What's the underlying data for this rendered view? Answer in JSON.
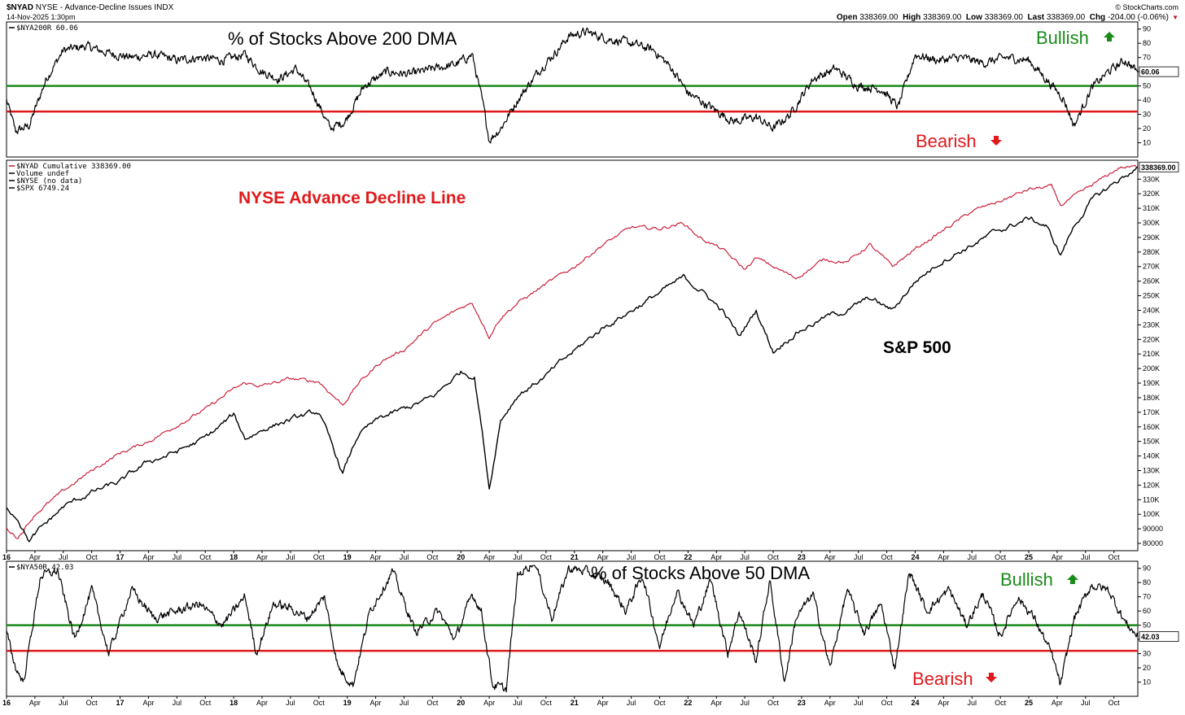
{
  "header": {
    "symbol": "$NYAD",
    "description": "NYSE - Advance-Decline Issues  INDX",
    "datetime": "14-Nov-2025 1:30pm",
    "brand": "© StockCharts.com",
    "open_label": "Open",
    "open": "338369.00",
    "high_label": "High",
    "high": "338369.00",
    "low_label": "Low",
    "low": "338369.00",
    "last_label": "Last",
    "last": "338369.00",
    "chg_label": "Chg",
    "chg": "-204.00 (-0.06%)"
  },
  "colors": {
    "adline": "#c8102e",
    "spx": "#000000",
    "bullish": "#1a8a1a",
    "bearish": "#e0191b",
    "frame": "#000000"
  },
  "chart_data": [
    {
      "type": "line",
      "title": "% of Stocks Above 200 DMA",
      "legend": [
        "$NYA200R 60.06"
      ],
      "ylim": [
        0,
        95
      ],
      "yticks": [
        10,
        20,
        30,
        40,
        50,
        60,
        70,
        80,
        90
      ],
      "last_value_label": "60.06",
      "reference_lines": [
        {
          "value": 50,
          "color": "green"
        },
        {
          "value": 32,
          "color": "red"
        }
      ],
      "annotations": {
        "bullish": "Bullish",
        "bearish": "Bearish"
      },
      "series": [
        {
          "name": "$NYA200R",
          "x": [
            2016.0,
            2016.08,
            2016.2,
            2016.35,
            2016.5,
            2016.7,
            2016.9,
            2017.1,
            2017.3,
            2017.5,
            2017.7,
            2017.9,
            2018.1,
            2018.25,
            2018.4,
            2018.55,
            2018.7,
            2018.85,
            2018.98,
            2019.15,
            2019.35,
            2019.55,
            2019.75,
            2019.95,
            2020.1,
            2020.2,
            2020.25,
            2020.35,
            2020.5,
            2020.7,
            2020.85,
            2020.95,
            2021.1,
            2021.3,
            2021.5,
            2021.7,
            2021.85,
            2022.0,
            2022.2,
            2022.4,
            2022.6,
            2022.75,
            2022.9,
            2023.1,
            2023.3,
            2023.5,
            2023.7,
            2023.85,
            2024.0,
            2024.2,
            2024.4,
            2024.6,
            2024.8,
            2025.0,
            2025.15,
            2025.3,
            2025.4,
            2025.55,
            2025.7,
            2025.85,
            2025.96
          ],
          "values": [
            40,
            18,
            22,
            55,
            75,
            78,
            73,
            70,
            72,
            68,
            70,
            68,
            72,
            60,
            55,
            62,
            45,
            20,
            25,
            50,
            60,
            58,
            62,
            65,
            72,
            35,
            12,
            20,
            40,
            62,
            75,
            85,
            88,
            83,
            80,
            75,
            63,
            45,
            35,
            25,
            28,
            20,
            30,
            55,
            62,
            50,
            48,
            35,
            72,
            68,
            70,
            66,
            70,
            68,
            55,
            42,
            22,
            48,
            60,
            68,
            60
          ]
        }
      ]
    },
    {
      "type": "line",
      "title": "NYSE Advance Decline Line",
      "legend": [
        "$NYAD Cumulative 338369.00",
        "Volume undef",
        "$NYSE (no data)",
        "$SPX 6749.24"
      ],
      "ylim": [
        75000,
        343000
      ],
      "yticks": [
        80000,
        90000,
        100000,
        110000,
        120000,
        130000,
        140000,
        150000,
        160000,
        170000,
        180000,
        190000,
        200000,
        210000,
        220000,
        230000,
        240000,
        250000,
        260000,
        270000,
        280000,
        290000,
        300000,
        310000,
        320000,
        330000
      ],
      "ytick_labels": [
        "80000",
        "90000",
        "100K",
        "110K",
        "120K",
        "130K",
        "140K",
        "150K",
        "160K",
        "170K",
        "180K",
        "190K",
        "200K",
        "210K",
        "220K",
        "230K",
        "240K",
        "250K",
        "260K",
        "270K",
        "280K",
        "290K",
        "300K",
        "310K",
        "320K",
        "330K"
      ],
      "last_value_label": "338369.00",
      "annotations": {
        "spx_label": "S&P 500"
      },
      "x_categories": [
        "16",
        "Apr",
        "Jul",
        "Oct",
        "17",
        "Apr",
        "Jul",
        "Oct",
        "18",
        "Apr",
        "Jul",
        "Oct",
        "19",
        "Apr",
        "Jul",
        "Oct",
        "20",
        "Apr",
        "Jul",
        "Oct",
        "21",
        "Apr",
        "Jul",
        "Oct",
        "22",
        "Apr",
        "Jul",
        "Oct",
        "23",
        "Apr",
        "Jul",
        "Oct",
        "24",
        "Apr",
        "Jul",
        "Oct",
        "25",
        "Apr",
        "Jul",
        "Oct"
      ],
      "series": [
        {
          "name": "$NYAD Cumulative",
          "x": [
            2016.0,
            2016.1,
            2016.25,
            2016.5,
            2016.75,
            2017.0,
            2017.25,
            2017.5,
            2017.75,
            2018.0,
            2018.1,
            2018.25,
            2018.5,
            2018.75,
            2018.96,
            2019.1,
            2019.3,
            2019.5,
            2019.75,
            2020.0,
            2020.1,
            2020.2,
            2020.25,
            2020.35,
            2020.5,
            2020.75,
            2021.0,
            2021.25,
            2021.5,
            2021.75,
            2021.96,
            2022.1,
            2022.3,
            2022.5,
            2022.6,
            2022.75,
            2022.95,
            2023.2,
            2023.4,
            2023.6,
            2023.8,
            2024.0,
            2024.25,
            2024.5,
            2024.75,
            2025.0,
            2025.2,
            2025.28,
            2025.4,
            2025.6,
            2025.8,
            2025.96
          ],
          "values": [
            90000,
            84000,
            100000,
            116000,
            130000,
            142000,
            150000,
            161000,
            172000,
            186000,
            190000,
            188000,
            193000,
            191000,
            175000,
            190000,
            205000,
            213000,
            230000,
            242000,
            245000,
            230000,
            222000,
            235000,
            245000,
            258000,
            270000,
            285000,
            297000,
            296000,
            300000,
            290000,
            282000,
            268000,
            276000,
            270000,
            262000,
            275000,
            273000,
            285000,
            270000,
            282000,
            295000,
            308000,
            315000,
            323000,
            325000,
            312000,
            318000,
            328000,
            338000,
            338369
          ]
        },
        {
          "name": "$SPX",
          "x": [
            2016.0,
            2016.1,
            2016.2,
            2016.5,
            2016.75,
            2017.0,
            2017.25,
            2017.5,
            2017.75,
            2018.0,
            2018.1,
            2018.3,
            2018.5,
            2018.75,
            2018.96,
            2019.1,
            2019.3,
            2019.5,
            2019.75,
            2020.0,
            2020.12,
            2020.2,
            2020.25,
            2020.35,
            2020.5,
            2020.75,
            2021.0,
            2021.25,
            2021.5,
            2021.75,
            2021.96,
            2022.1,
            2022.3,
            2022.45,
            2022.6,
            2022.75,
            2022.95,
            2023.2,
            2023.4,
            2023.6,
            2023.8,
            2024.0,
            2024.25,
            2024.5,
            2024.75,
            2025.0,
            2025.15,
            2025.28,
            2025.4,
            2025.55,
            2025.8,
            2025.96
          ],
          "values": [
            105000,
            98000,
            82000,
            105000,
            115000,
            122000,
            136000,
            143000,
            152000,
            168000,
            152000,
            160000,
            165000,
            170000,
            128000,
            155000,
            166000,
            172000,
            180000,
            198000,
            195000,
            150000,
            118000,
            165000,
            182000,
            195000,
            212000,
            228000,
            240000,
            252000,
            262000,
            255000,
            240000,
            222000,
            240000,
            212000,
            225000,
            235000,
            240000,
            248000,
            240000,
            260000,
            275000,
            285000,
            295000,
            303000,
            298000,
            278000,
            298000,
            315000,
            330000,
            338000
          ]
        }
      ]
    },
    {
      "type": "line",
      "title": "% of Stocks Above 50 DMA",
      "legend": [
        "$NYA50R 42.03"
      ],
      "ylim": [
        0,
        95
      ],
      "yticks": [
        10,
        20,
        30,
        40,
        50,
        60,
        70,
        80,
        90
      ],
      "last_value_label": "42.03",
      "reference_lines": [
        {
          "value": 50,
          "color": "green"
        },
        {
          "value": 32,
          "color": "red"
        }
      ],
      "annotations": {
        "bullish": "Bullish",
        "bearish": "Bearish"
      },
      "x_categories": [
        "16",
        "Apr",
        "Jul",
        "Oct",
        "17",
        "Apr",
        "Jul",
        "Oct",
        "18",
        "Apr",
        "Jul",
        "Oct",
        "19",
        "Apr",
        "Jul",
        "Oct",
        "20",
        "Apr",
        "Jul",
        "Oct",
        "21",
        "Apr",
        "Jul",
        "Oct",
        "22",
        "Apr",
        "Jul",
        "Oct",
        "23",
        "Apr",
        "Jul",
        "Oct",
        "24",
        "Apr",
        "Jul",
        "Oct",
        "25",
        "Apr",
        "Jul",
        "Oct"
      ],
      "series": [
        {
          "name": "$NYA50R",
          "x": [
            2016.0,
            2016.08,
            2016.15,
            2016.3,
            2016.45,
            2016.6,
            2016.75,
            2016.9,
            2017.1,
            2017.3,
            2017.5,
            2017.7,
            2017.9,
            2018.1,
            2018.2,
            2018.35,
            2018.5,
            2018.65,
            2018.8,
            2018.92,
            2019.05,
            2019.2,
            2019.4,
            2019.6,
            2019.8,
            2019.95,
            2020.1,
            2020.18,
            2020.28,
            2020.4,
            2020.5,
            2020.65,
            2020.8,
            2020.95,
            2021.1,
            2021.3,
            2021.45,
            2021.6,
            2021.75,
            2021.9,
            2022.05,
            2022.2,
            2022.35,
            2022.45,
            2022.6,
            2022.72,
            2022.85,
            2022.95,
            2023.1,
            2023.25,
            2023.4,
            2023.55,
            2023.7,
            2023.82,
            2023.95,
            2024.1,
            2024.3,
            2024.45,
            2024.6,
            2024.75,
            2024.9,
            2025.05,
            2025.2,
            2025.28,
            2025.4,
            2025.55,
            2025.7,
            2025.85,
            2025.96
          ],
          "values": [
            45,
            20,
            10,
            85,
            88,
            40,
            75,
            30,
            75,
            55,
            60,
            65,
            50,
            70,
            30,
            65,
            62,
            55,
            70,
            20,
            8,
            60,
            88,
            45,
            60,
            40,
            72,
            60,
            8,
            5,
            85,
            95,
            55,
            90,
            88,
            80,
            60,
            85,
            35,
            75,
            50,
            82,
            30,
            60,
            25,
            82,
            10,
            55,
            72,
            20,
            75,
            45,
            65,
            20,
            88,
            60,
            75,
            50,
            72,
            42,
            70,
            55,
            30,
            8,
            55,
            78,
            75,
            52,
            42
          ]
        }
      ]
    }
  ]
}
